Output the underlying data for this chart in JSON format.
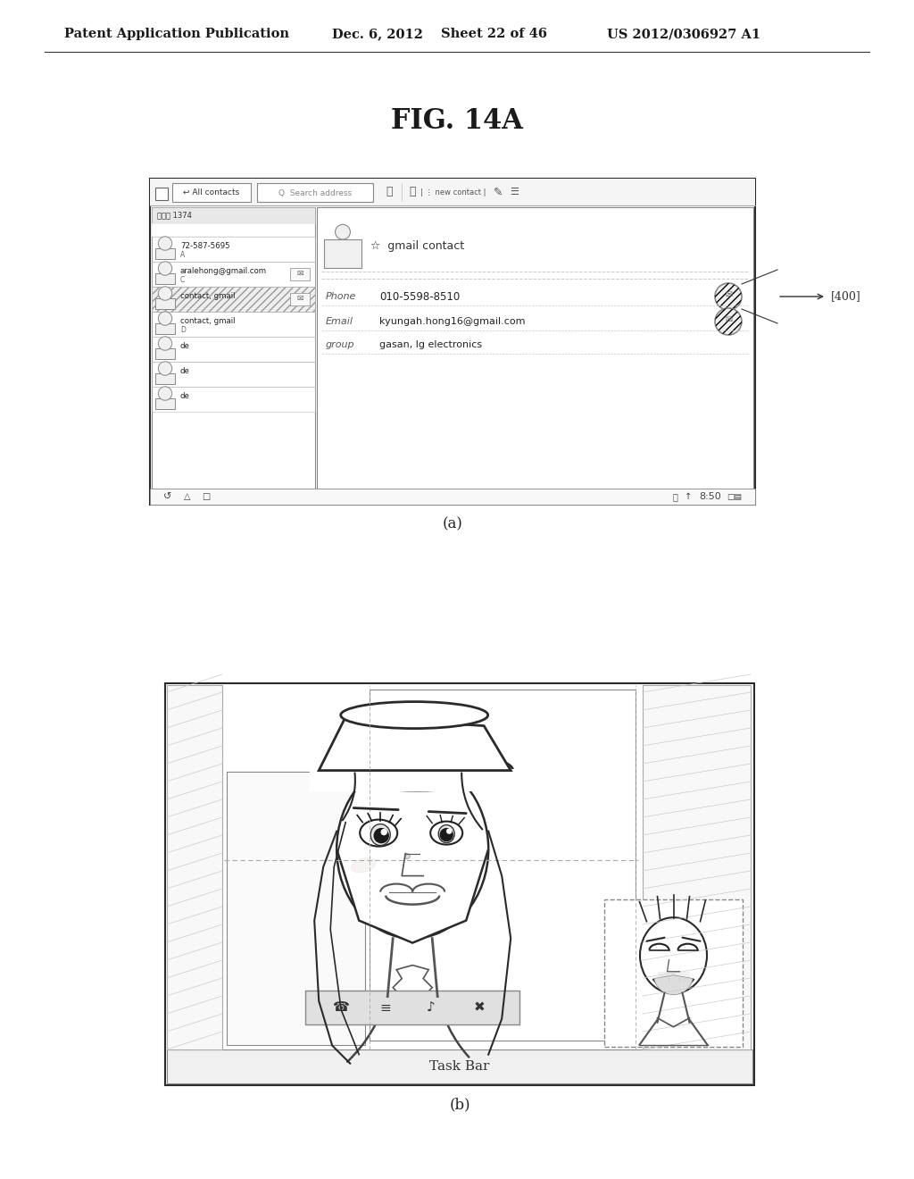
{
  "bg_color": "#ffffff",
  "header_text": "Patent Application Publication",
  "header_date": "Dec. 6, 2012",
  "header_sheet": "Sheet 22 of 46",
  "header_patent": "US 2012/0306927 A1",
  "fig_title": "FIG. 14A",
  "label_a": "(a)",
  "label_b": "(b)",
  "label_400": "400",
  "taskbar_text": "Task Bar",
  "contact_header": "연락저 1374",
  "phone_label": "Phone",
  "phone_value": "010-5598-8510",
  "email_label": "Email",
  "email_value": "kyungah.hong16@gmail.com",
  "group_label": "group",
  "group_value": "gasan, lg electronics",
  "gmail_contact": "gmail contact",
  "all_contacts": "All contacts",
  "search_address": "Search address",
  "new_contact": "new contact",
  "contact_rows": [
    {
      "name": "72-587-5695",
      "sub": "A",
      "icon": false,
      "hatch": false
    },
    {
      "name": "aralehong@gmail.com",
      "sub": "C",
      "icon": true,
      "hatch": false
    },
    {
      "name": "contact, gmail",
      "sub": "",
      "icon": true,
      "hatch": true
    },
    {
      "name": "contact, gmail",
      "sub": "D",
      "icon": false,
      "hatch": false
    },
    {
      "name": "de",
      "sub": "",
      "icon": false,
      "hatch": false
    },
    {
      "name": "de",
      "sub": "",
      "icon": false,
      "hatch": false
    },
    {
      "name": "de",
      "sub": "",
      "icon": false,
      "hatch": false
    }
  ]
}
